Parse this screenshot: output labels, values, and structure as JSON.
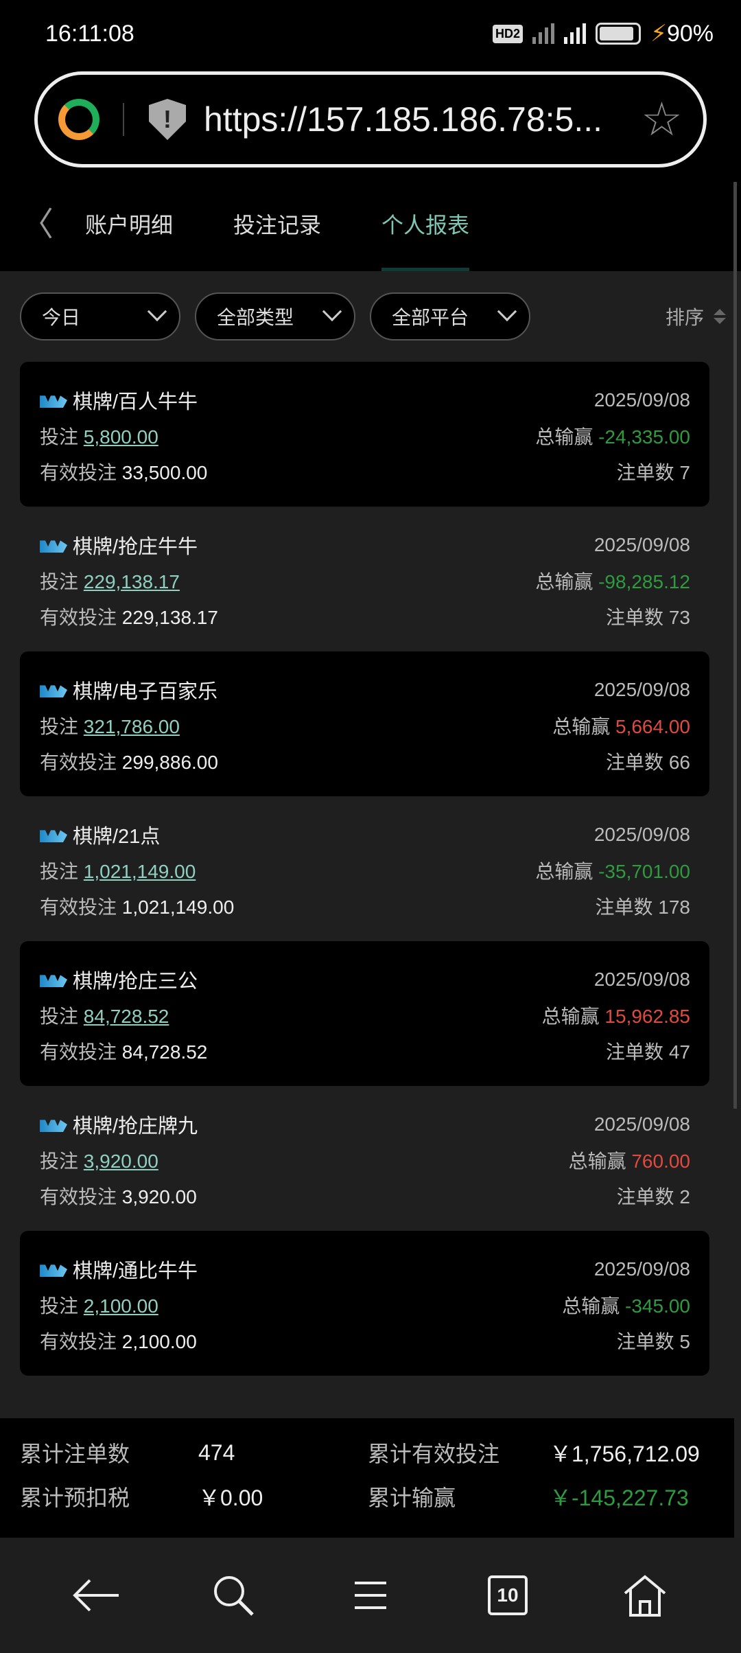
{
  "status": {
    "time": "16:11:08",
    "hd": "HD2",
    "network": "5G",
    "battery": "90%"
  },
  "browser": {
    "url": "https://157.185.186.78:5...",
    "icons": [
      "browser-logo-icon",
      "shield-warning-icon",
      "star-icon"
    ]
  },
  "tabs": [
    {
      "label": "账户明细"
    },
    {
      "label": "投注记录"
    },
    {
      "label": "个人报表",
      "active": true
    }
  ],
  "filters": {
    "date": "今日",
    "type": "全部类型",
    "platform": "全部平台",
    "sort": "排序"
  },
  "labels": {
    "bet": "投注",
    "valid": "有效投注",
    "winloss": "总输赢",
    "count": "注单数"
  },
  "records": [
    {
      "title": "棋牌/百人牛牛",
      "date": "2025/09/08",
      "bet": "5,800.00",
      "winloss": "-24,335.00",
      "valid": "33,500.00",
      "count": "7"
    },
    {
      "title": "棋牌/抢庄牛牛",
      "date": "2025/09/08",
      "bet": "229,138.17",
      "winloss": "-98,285.12",
      "valid": "229,138.17",
      "count": "73"
    },
    {
      "title": "棋牌/电子百家乐",
      "date": "2025/09/08",
      "bet": "321,786.00",
      "winloss": "5,664.00",
      "valid": "299,886.00",
      "count": "66"
    },
    {
      "title": "棋牌/21点",
      "date": "2025/09/08",
      "bet": "1,021,149.00",
      "winloss": "-35,701.00",
      "valid": "1,021,149.00",
      "count": "178"
    },
    {
      "title": "棋牌/抢庄三公",
      "date": "2025/09/08",
      "bet": "84,728.52",
      "winloss": "15,962.85",
      "valid": "84,728.52",
      "count": "47"
    },
    {
      "title": "棋牌/抢庄牌九",
      "date": "2025/09/08",
      "bet": "3,920.00",
      "winloss": "760.00",
      "valid": "3,920.00",
      "count": "2"
    },
    {
      "title": "棋牌/通比牛牛",
      "date": "2025/09/08",
      "bet": "2,100.00",
      "winloss": "-345.00",
      "valid": "2,100.00",
      "count": "5"
    }
  ],
  "summary": {
    "count_label": "累计注单数",
    "count": "474",
    "valid_label": "累计有效投注",
    "valid": "￥1,756,712.09",
    "tax_label": "累计预扣税",
    "tax": "￥0.00",
    "winloss_label": "累计输赢",
    "winloss": "￥-145,227.73"
  },
  "nav": {
    "tabs_count": "10"
  },
  "colors": {
    "accent": "#7fc6b3",
    "negative": "#2e9b3f",
    "positive": "#e04a3f"
  }
}
